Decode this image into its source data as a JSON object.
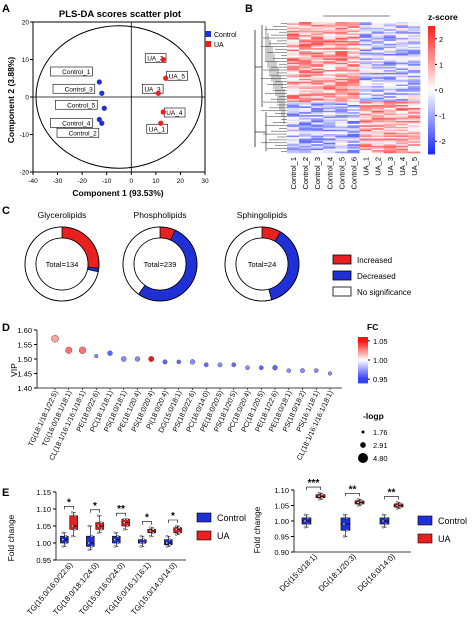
{
  "panels": {
    "a": {
      "letter": "A"
    },
    "b": {
      "letter": "B"
    },
    "c": {
      "letter": "C"
    },
    "d": {
      "letter": "D"
    },
    "e": {
      "letter": "E"
    }
  },
  "colors": {
    "control": "#1f31d6",
    "ua": "#e8201f",
    "ns": "#ffffff"
  },
  "chart_data": [
    {
      "id": "pca",
      "type": "scatter",
      "title": "PLS-DA scores scatter plot",
      "xlabel": "Component 1 (93.53%)",
      "ylabel": "Component 2 (3.88%)",
      "xlim": [
        -40,
        30
      ],
      "ylim": [
        -20,
        20
      ],
      "xticks": [
        -40,
        -30,
        -20,
        -10,
        0,
        10,
        20,
        30
      ],
      "yticks": [
        -20,
        -10,
        0,
        10,
        20
      ],
      "legend": [
        "Control",
        "UA"
      ],
      "series": [
        {
          "name": "Control",
          "points": [
            {
              "label": "Control_1",
              "x": -13,
              "y": 4
            },
            {
              "label": "Control_3",
              "x": -12,
              "y": 1
            },
            {
              "label": "Control_5",
              "x": -11,
              "y": -3
            },
            {
              "label": "Control_4",
              "x": -13,
              "y": -6
            },
            {
              "label": "Control_2",
              "x": -12,
              "y": -7
            }
          ]
        },
        {
          "name": "UA",
          "points": [
            {
              "label": "UA_2",
              "x": 13,
              "y": 10
            },
            {
              "label": "UA_5",
              "x": 14,
              "y": 5
            },
            {
              "label": "UA_3",
              "x": 11,
              "y": 1
            },
            {
              "label": "UA_4",
              "x": 13,
              "y": -4
            },
            {
              "label": "UA_1",
              "x": 12,
              "y": -7
            }
          ]
        }
      ]
    },
    {
      "id": "heatmap",
      "type": "heatmap",
      "columns": [
        "Control_1",
        "Control_2",
        "Control_3",
        "Control_4",
        "Control_5",
        "Control_6",
        "UA_1",
        "UA_2",
        "UA_3",
        "UA_4",
        "UA_5"
      ],
      "colorbar_title": "z-score",
      "colorbar_ticks": [
        2,
        1,
        0,
        -1,
        -2
      ],
      "colorbar_range": [
        -2.5,
        2.5
      ]
    },
    {
      "id": "donuts",
      "type": "pie",
      "legend": [
        "Increased",
        "Decreased",
        "No significance"
      ],
      "charts": [
        {
          "title": "Glycerolipids",
          "total": "Total=134",
          "values": {
            "increased": 36,
            "decreased": 2,
            "ns": 96
          }
        },
        {
          "title": "Phospholipids",
          "total": "Total=239",
          "values": {
            "increased": 16,
            "decreased": 127,
            "ns": 96
          }
        },
        {
          "title": "Sphingolipids",
          "total": "Total=24",
          "values": {
            "increased": 2,
            "decreased": 9,
            "ns": 13
          }
        }
      ]
    },
    {
      "id": "vip",
      "type": "scatter",
      "ylabel": "VIP",
      "ylim": [
        1.4,
        1.6
      ],
      "yticks": [
        "1.60",
        "1.55",
        "1.50",
        "1.45",
        "1.40"
      ],
      "fc_title": "FC",
      "fc_ticks": [
        "1.05",
        "1.00",
        "0.95"
      ],
      "size_title": "-logp",
      "size_ticks": [
        "1.76",
        "2.91",
        "4.80"
      ],
      "categories": [
        "TG(18:1/18:1/22:5)",
        "PE(18:0/22:6)",
        "TG(16:0/18:1/18:1)",
        "PC(18:1/18:1)",
        "CL(18:1/16:1/16:1/18:1)",
        "PS(18:0/18:1)",
        "PE(18:1/20:4)",
        "DG(15:0/18:1)",
        "PS(18:0/20:4)",
        "PI(18:0/20:4)",
        "PS(18:0/22:6)",
        "PC(16:0/14:0)",
        "PE(18:0/20:5)",
        "PS(18:1/20:5)",
        "PC(18:0/20:4)",
        "PC(18:1/20:5)",
        "PE(18:1/22:6)",
        "PE(18:0/18:1)",
        "PS(18:0/18:2)",
        "PS(16:1/18:1)",
        "CL(18:1/16:1/16:1/18:1)"
      ],
      "xtick_labels": [
        "TG(18:1/18:1/22:5)",
        "TG(16:0/18:1/18:1)",
        "CL(18:1/16:1/16:1/18:1)",
        "PE(18:0/22:6)",
        "PC(18:1/18:1)",
        "PS(18:0/18:1)",
        "PE(18:1/20:4)",
        "PS(18:0/20:4)",
        "PI(18:0/20:4)",
        "DG(15:0/18:1)",
        "PS(18:0/22:6)",
        "PC(16:0/14:0)",
        "PE(18:0/20:5)",
        "PS(18:1/20:5)",
        "PC(18:0/20:4)",
        "PC(18:1/20:5)",
        "PE(18:1/22:6)",
        "PE(18:0/18:1)",
        "PS(18:0/18:2)",
        "PS(16:1/18:1)",
        "CL(18:1/16:1/16:1/18:1)"
      ],
      "values": [
        1.57,
        1.53,
        1.53,
        1.51,
        1.52,
        1.5,
        1.5,
        1.5,
        1.49,
        1.49,
        1.49,
        1.48,
        1.48,
        1.48,
        1.47,
        1.47,
        1.47,
        1.46,
        1.46,
        1.46,
        1.45
      ],
      "fc": [
        1.02,
        1.03,
        1.03,
        0.97,
        0.96,
        0.97,
        0.97,
        1.06,
        0.96,
        0.96,
        0.97,
        0.96,
        0.97,
        0.96,
        0.97,
        0.96,
        0.96,
        0.97,
        0.97,
        0.97,
        0.97
      ],
      "logp": [
        3.6,
        3.3,
        3.4,
        2.1,
        2.6,
        2.7,
        2.6,
        2.8,
        2.4,
        2.2,
        2.6,
        2.3,
        2.4,
        2.3,
        2.3,
        2.3,
        2.6,
        2.2,
        2.4,
        2.3,
        2.1
      ]
    },
    {
      "id": "fold1",
      "type": "bar",
      "ylabel": "Fold change",
      "ylim": [
        0.95,
        1.15
      ],
      "yticks": [
        "1.15",
        "1.10",
        "1.05",
        "1.00",
        "0.95"
      ],
      "legend": [
        "Control",
        "UA"
      ],
      "categories": [
        "TG(15:0/16:0/22:6)",
        "TG(18:0/18:1/24:0)",
        "TG(15:0/16:0/24:0)",
        "TG(16:0/16:1/16:1)",
        "TG(15:0/14:0/14:0)"
      ],
      "significance": [
        "*",
        "*",
        "**",
        "*",
        "*"
      ],
      "series": [
        {
          "name": "Control",
          "boxes": [
            [
              0.99,
              1.0,
              1.01,
              1.02,
              1.03
            ],
            [
              0.98,
              0.99,
              1.0,
              1.02,
              1.05
            ],
            [
              0.99,
              1.0,
              1.01,
              1.02,
              1.03
            ],
            [
              0.99,
              1.0,
              1.0,
              1.01,
              1.02
            ],
            [
              0.99,
              0.995,
              1.0,
              1.01,
              1.02
            ]
          ]
        },
        {
          "name": "UA",
          "boxes": [
            [
              1.02,
              1.04,
              1.05,
              1.08,
              1.09
            ],
            [
              1.03,
              1.04,
              1.05,
              1.06,
              1.08
            ],
            [
              1.04,
              1.05,
              1.06,
              1.07,
              1.07
            ],
            [
              1.02,
              1.03,
              1.035,
              1.04,
              1.045
            ],
            [
              1.025,
              1.03,
              1.04,
              1.045,
              1.05
            ]
          ]
        }
      ]
    },
    {
      "id": "fold2",
      "type": "bar",
      "ylabel": "Fold change",
      "ylim": [
        0.9,
        1.1
      ],
      "yticks": [
        "1.10",
        "1.05",
        "1.00",
        "0.95",
        "0.90"
      ],
      "legend": [
        "Control",
        "UA"
      ],
      "categories": [
        "DG(15:0/18:1)",
        "DG(18:1/20:3)",
        "DG(16:0/14:0)"
      ],
      "significance": [
        "***",
        "**",
        "**"
      ],
      "series": [
        {
          "name": "Control",
          "boxes": [
            [
              0.98,
              0.99,
              1.0,
              1.01,
              1.02
            ],
            [
              0.95,
              0.97,
              0.99,
              1.01,
              1.02
            ],
            [
              0.98,
              0.99,
              1.0,
              1.01,
              1.02
            ]
          ]
        },
        {
          "name": "UA",
          "boxes": [
            [
              1.07,
              1.075,
              1.08,
              1.085,
              1.09
            ],
            [
              1.05,
              1.055,
              1.06,
              1.065,
              1.07
            ],
            [
              1.04,
              1.045,
              1.05,
              1.055,
              1.06
            ]
          ]
        }
      ]
    }
  ]
}
